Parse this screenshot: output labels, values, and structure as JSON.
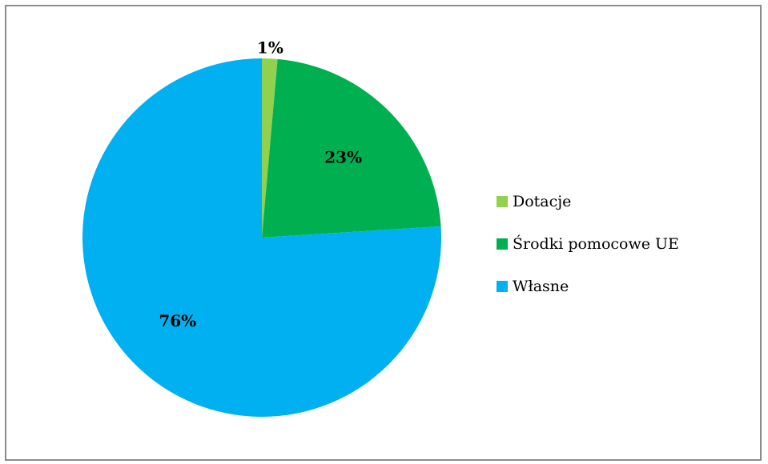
{
  "chart_data": {
    "type": "pie",
    "categories": [
      "Dotacje",
      "Środki pomocowe UE",
      "Własne"
    ],
    "values": [
      1.4,
      22.6,
      76.0
    ],
    "data_labels": [
      "1%",
      "23%",
      "76%"
    ],
    "colors": [
      "#92d050",
      "#00b050",
      "#00b0f0"
    ],
    "legend_position": "right",
    "start_angle_deg": 0,
    "direction": "clockwise"
  }
}
